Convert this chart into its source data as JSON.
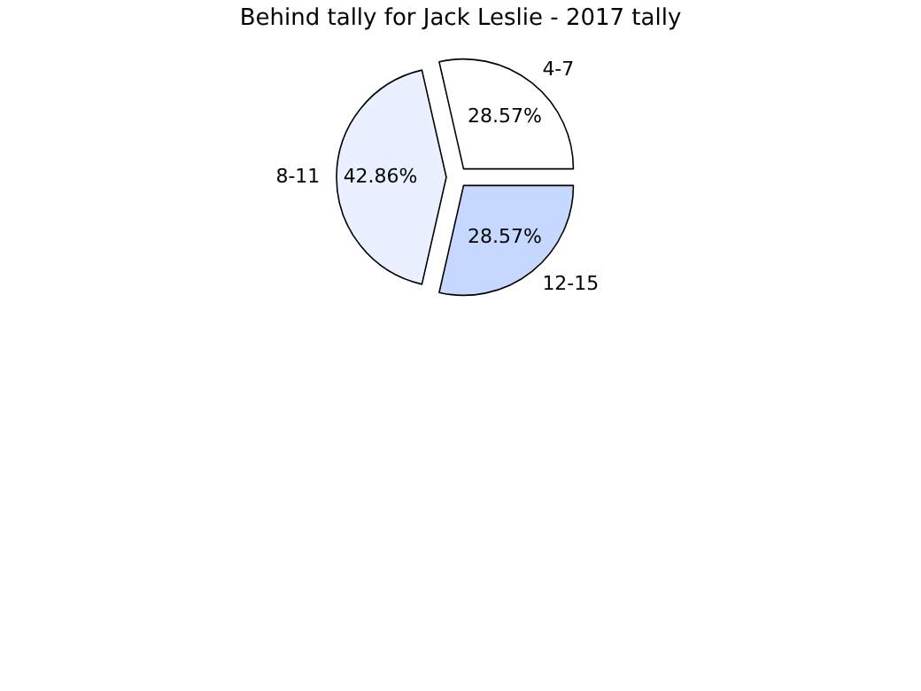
{
  "chart_data": {
    "type": "pie",
    "title": "Behind tally for Jack Leslie - 2017 tally",
    "categories": [
      "4-7",
      "8-11",
      "12-15"
    ],
    "values": [
      28.57,
      42.86,
      28.57
    ],
    "colors": [
      "#ffffff",
      "#eaf0ff",
      "#c6d8ff"
    ],
    "value_labels": [
      "28.57%",
      "42.86%",
      "28.57%"
    ]
  }
}
